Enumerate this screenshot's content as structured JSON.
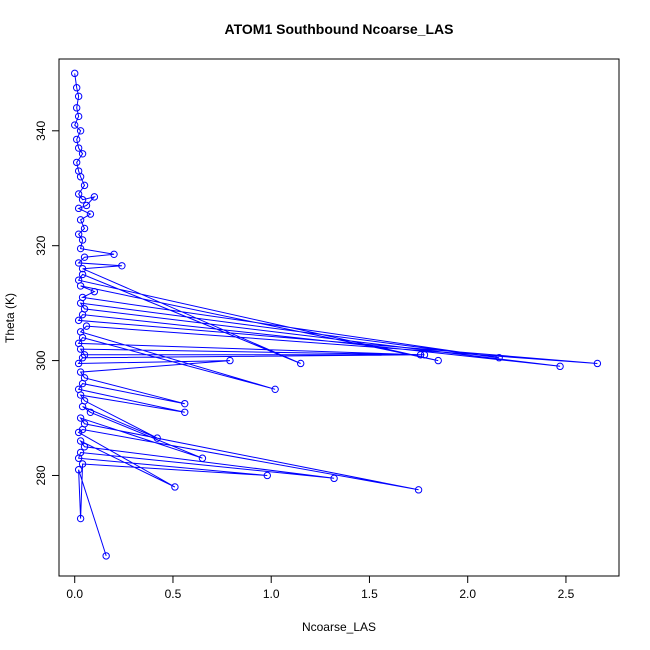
{
  "chart_data": {
    "type": "line",
    "title": "ATOM1 Southbound Ncoarse_LAS",
    "xlabel": "Ncoarse_LAS",
    "ylabel": "Theta (K)",
    "xlim": [
      -0.08,
      2.77
    ],
    "ylim": [
      262.5,
      352.5
    ],
    "xticks": [
      0.0,
      0.5,
      1.0,
      1.5,
      2.0,
      2.5
    ],
    "xtick_labels": [
      "0.0",
      "0.5",
      "1.0",
      "1.5",
      "2.0",
      "2.5"
    ],
    "yticks": [
      280,
      300,
      320,
      340
    ],
    "ytick_labels": [
      "280",
      "300",
      "320",
      "340"
    ],
    "grid": false,
    "legend": "none",
    "color": "#0000ff",
    "series": [
      {
        "points": [
          [
            0.0,
            350.0
          ],
          [
            0.01,
            347.5
          ],
          [
            0.02,
            346.0
          ],
          [
            0.01,
            344.0
          ],
          [
            0.02,
            342.5
          ],
          [
            0.0,
            341.0
          ],
          [
            0.03,
            340.0
          ],
          [
            0.01,
            338.5
          ],
          [
            0.02,
            337.0
          ],
          [
            0.04,
            336.0
          ],
          [
            0.01,
            334.5
          ],
          [
            0.02,
            333.0
          ],
          [
            0.03,
            332.0
          ],
          [
            0.05,
            330.5
          ],
          [
            0.02,
            329.0
          ],
          [
            0.04,
            328.0
          ],
          [
            0.1,
            328.5
          ],
          [
            0.06,
            327.0
          ],
          [
            0.02,
            326.5
          ],
          [
            0.08,
            325.5
          ],
          [
            0.03,
            324.5
          ],
          [
            0.05,
            323.0
          ],
          [
            0.02,
            322.0
          ],
          [
            0.04,
            321.0
          ],
          [
            0.03,
            319.5
          ],
          [
            0.2,
            318.5
          ],
          [
            0.05,
            318.0
          ],
          [
            0.02,
            317.0
          ],
          [
            0.24,
            316.5
          ],
          [
            0.04,
            316.0
          ],
          [
            1.15,
            299.5
          ],
          [
            0.04,
            315.0
          ],
          [
            0.02,
            314.0
          ],
          [
            1.85,
            300.0
          ],
          [
            0.03,
            313.0
          ],
          [
            0.1,
            312.0
          ],
          [
            0.04,
            311.0
          ],
          [
            2.16,
            300.5
          ],
          [
            0.03,
            310.0
          ],
          [
            0.05,
            309.0
          ],
          [
            2.47,
            299.0
          ],
          [
            0.04,
            308.0
          ],
          [
            0.02,
            307.0
          ],
          [
            2.66,
            299.5
          ],
          [
            0.06,
            306.0
          ],
          [
            0.03,
            305.0
          ],
          [
            1.02,
            295.0
          ],
          [
            0.04,
            304.0
          ],
          [
            0.02,
            303.0
          ],
          [
            1.76,
            301.0
          ],
          [
            0.03,
            302.0
          ],
          [
            0.05,
            301.0
          ],
          [
            1.78,
            301.0
          ],
          [
            0.04,
            300.5
          ],
          [
            0.02,
            299.5
          ],
          [
            0.79,
            300.0
          ],
          [
            0.03,
            298.0
          ],
          [
            0.05,
            297.0
          ],
          [
            0.56,
            292.5
          ],
          [
            0.04,
            296.0
          ],
          [
            0.02,
            295.0
          ],
          [
            0.56,
            291.0
          ],
          [
            0.03,
            294.0
          ],
          [
            0.05,
            293.0
          ],
          [
            0.42,
            286.5
          ],
          [
            0.04,
            292.0
          ],
          [
            0.08,
            291.0
          ],
          [
            0.65,
            283.0
          ],
          [
            0.03,
            290.0
          ],
          [
            0.05,
            289.0
          ],
          [
            1.75,
            277.5
          ],
          [
            0.04,
            288.0
          ],
          [
            0.02,
            287.5
          ],
          [
            0.51,
            278.0
          ],
          [
            0.03,
            286.0
          ],
          [
            0.05,
            285.0
          ],
          [
            1.32,
            279.5
          ],
          [
            0.03,
            284.0
          ],
          [
            0.02,
            283.0
          ],
          [
            0.98,
            280.0
          ],
          [
            0.04,
            282.0
          ],
          [
            0.03,
            272.5
          ],
          [
            0.02,
            281.0
          ],
          [
            0.16,
            266.0
          ]
        ]
      }
    ]
  }
}
